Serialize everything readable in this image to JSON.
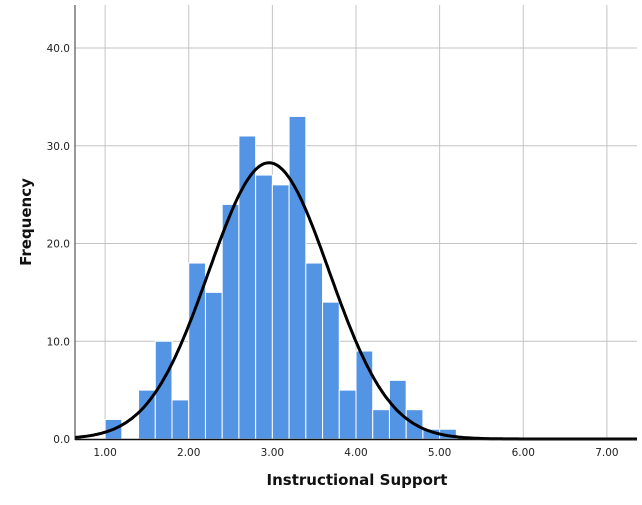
{
  "chart_data": {
    "type": "bar",
    "subtype": "histogram",
    "title": "",
    "xlabel": "Instructional Support",
    "ylabel": "Frequency",
    "xlim": [
      0.64,
      7.36
    ],
    "ylim": [
      0,
      44.4
    ],
    "grid": true,
    "bar_color": "#5394e5",
    "curve_color": "#000000",
    "x_ticks": [
      {
        "value": 1,
        "label": "1.00"
      },
      {
        "value": 2,
        "label": "2.00"
      },
      {
        "value": 3,
        "label": "3.00"
      },
      {
        "value": 4,
        "label": "4.00"
      },
      {
        "value": 5,
        "label": "5.00"
      },
      {
        "value": 6,
        "label": "6.00"
      },
      {
        "value": 7,
        "label": "7.00"
      }
    ],
    "y_ticks": [
      {
        "value": 0,
        "label": "0.0"
      },
      {
        "value": 10,
        "label": "10.0"
      },
      {
        "value": 20,
        "label": "20.0"
      },
      {
        "value": 30,
        "label": "30.0"
      },
      {
        "value": 40,
        "label": "40.0"
      }
    ],
    "bin_width": 0.2,
    "bins": [
      {
        "start": 1.0,
        "count": 2
      },
      {
        "start": 1.2,
        "count": 0
      },
      {
        "start": 1.4,
        "count": 5
      },
      {
        "start": 1.6,
        "count": 10
      },
      {
        "start": 1.8,
        "count": 4
      },
      {
        "start": 2.0,
        "count": 18
      },
      {
        "start": 2.2,
        "count": 15
      },
      {
        "start": 2.4,
        "count": 24
      },
      {
        "start": 2.6,
        "count": 31
      },
      {
        "start": 2.8,
        "count": 27
      },
      {
        "start": 3.0,
        "count": 26
      },
      {
        "start": 3.2,
        "count": 33
      },
      {
        "start": 3.4,
        "count": 18
      },
      {
        "start": 3.6,
        "count": 14
      },
      {
        "start": 3.8,
        "count": 5
      },
      {
        "start": 4.0,
        "count": 9
      },
      {
        "start": 4.2,
        "count": 3
      },
      {
        "start": 4.4,
        "count": 6
      },
      {
        "start": 4.6,
        "count": 3
      },
      {
        "start": 4.8,
        "count": 1
      },
      {
        "start": 5.0,
        "count": 1
      }
    ],
    "normal_curve": {
      "mean": 2.96,
      "sd": 0.72,
      "n": 255
    }
  }
}
